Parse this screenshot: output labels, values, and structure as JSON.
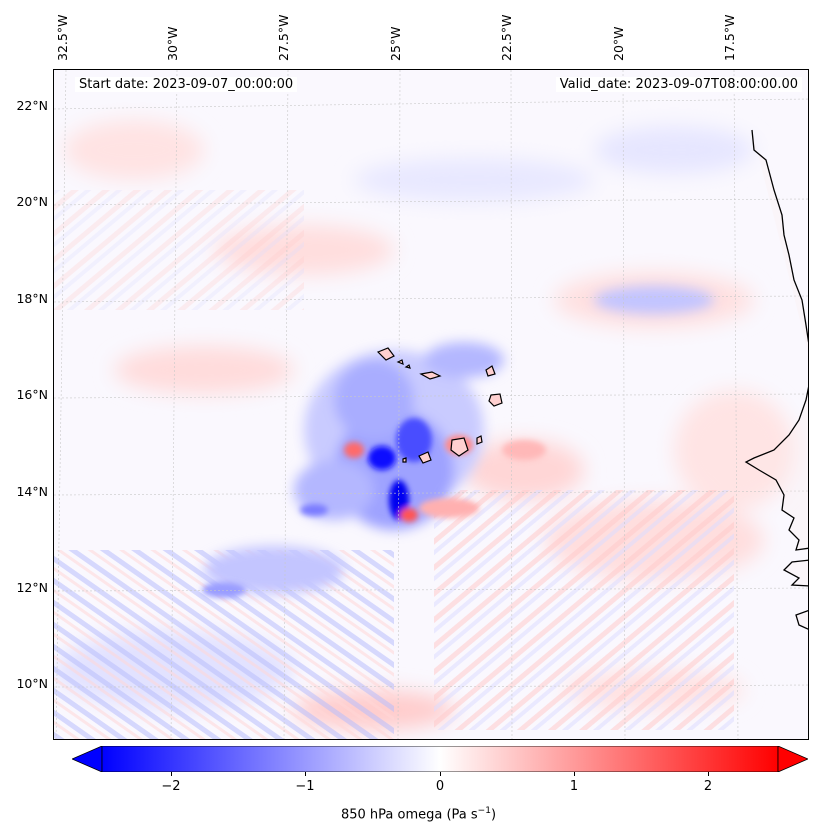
{
  "map": {
    "lon_labels": [
      "32.5°W",
      "30°W",
      "27.5°W",
      "25°W",
      "22.5°W",
      "20°W",
      "17.5°W"
    ],
    "lat_labels": [
      "22°N",
      "20°N",
      "18°N",
      "16°N",
      "14°N",
      "12°N",
      "10°N"
    ],
    "start_date": "Start date: 2023-09-07_00:00:00",
    "valid_date": "Valid_date: 2023-09-07T08:00:00.00",
    "field": "850 hPa omega",
    "colors": {
      "negative": "#0000ff",
      "zero": "#ffffff",
      "positive": "#ff0000",
      "coastline": "#000000"
    }
  },
  "colorbar": {
    "ticks": [
      "−2",
      "−1",
      "0",
      "1",
      "2"
    ],
    "label_main": "850 hPa omega (Pa s",
    "label_exp": "−1",
    "label_close": ")",
    "range": [
      -2.75,
      2.75
    ]
  }
}
